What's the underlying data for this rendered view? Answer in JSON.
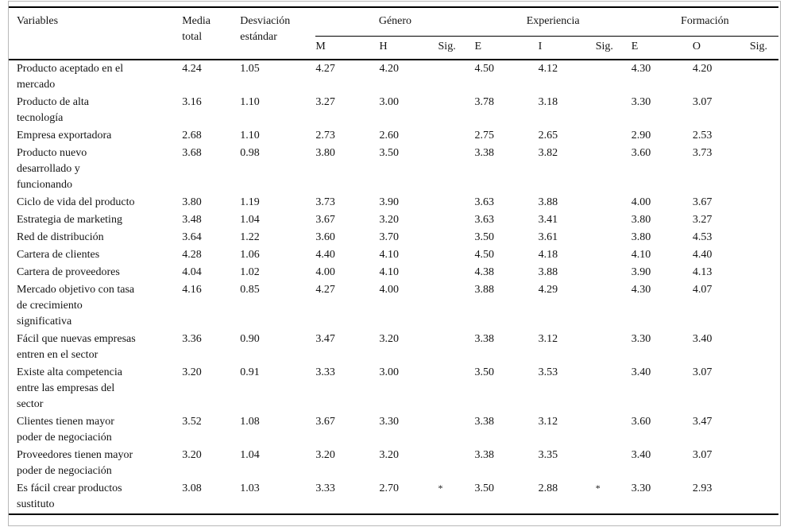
{
  "table": {
    "header": {
      "variables": "Variables",
      "media_total": "Media\ntotal",
      "desviacion": "Desviación\nestándar",
      "groups": [
        {
          "label": "Género",
          "cols": [
            "M",
            "H",
            "Sig."
          ]
        },
        {
          "label": "Experiencia",
          "cols": [
            "E",
            "I",
            "Sig."
          ]
        },
        {
          "label": "Formación",
          "cols": [
            "E",
            "O",
            "Sig."
          ]
        }
      ]
    },
    "rows": [
      {
        "variable": "Producto aceptado en el\nmercado",
        "values": [
          "4.24",
          "1.05",
          "4.27",
          "4.20",
          "",
          "4.50",
          "4.12",
          "",
          "4.30",
          "4.20",
          ""
        ]
      },
      {
        "variable": "Producto de alta\ntecnología",
        "values": [
          "3.16",
          "1.10",
          "3.27",
          "3.00",
          "",
          "3.78",
          "3.18",
          "",
          "3.30",
          "3.07",
          ""
        ]
      },
      {
        "variable": "Empresa exportadora",
        "values": [
          "2.68",
          "1.10",
          "2.73",
          "2.60",
          "",
          "2.75",
          "2.65",
          "",
          "2.90",
          "2.53",
          ""
        ]
      },
      {
        "variable": "Producto nuevo\ndesarrollado y\nfuncionando",
        "values": [
          "3.68",
          "0.98",
          "3.80",
          "3.50",
          "",
          "3.38",
          "3.82",
          "",
          "3.60",
          "3.73",
          ""
        ]
      },
      {
        "variable": "Ciclo de vida del producto",
        "values": [
          "3.80",
          "1.19",
          "3.73",
          "3.90",
          "",
          "3.63",
          "3.88",
          "",
          "4.00",
          "3.67",
          ""
        ]
      },
      {
        "variable": "Estrategia de marketing",
        "values": [
          "3.48",
          "1.04",
          "3.67",
          "3.20",
          "",
          "3.63",
          "3.41",
          "",
          "3.80",
          "3.27",
          ""
        ]
      },
      {
        "variable": "Red de distribución",
        "values": [
          "3.64",
          "1.22",
          "3.60",
          "3.70",
          "",
          "3.50",
          "3.61",
          "",
          "3.80",
          "4.53",
          ""
        ]
      },
      {
        "variable": "Cartera de clientes",
        "values": [
          "4.28",
          "1.06",
          "4.40",
          "4.10",
          "",
          "4.50",
          "4.18",
          "",
          "4.10",
          "4.40",
          ""
        ]
      },
      {
        "variable": "Cartera de proveedores",
        "values": [
          "4.04",
          "1.02",
          "4.00",
          "4.10",
          "",
          "4.38",
          "3.88",
          "",
          "3.90",
          "4.13",
          ""
        ]
      },
      {
        "variable": "Mercado objetivo con tasa\nde crecimiento\nsignificativa",
        "values": [
          "4.16",
          "0.85",
          "4.27",
          "4.00",
          "",
          "3.88",
          "4.29",
          "",
          "4.30",
          "4.07",
          ""
        ]
      },
      {
        "variable": "Fácil que nuevas empresas\nentren en el sector",
        "values": [
          "3.36",
          "0.90",
          "3.47",
          "3.20",
          "",
          "3.38",
          "3.12",
          "",
          "3.30",
          "3.40",
          ""
        ]
      },
      {
        "variable": "Existe alta competencia\nentre las empresas del\nsector",
        "values": [
          "3.20",
          "0.91",
          "3.33",
          "3.00",
          "",
          "3.50",
          "3.53",
          "",
          "3.40",
          "3.07",
          ""
        ]
      },
      {
        "variable": "Clientes tienen mayor\npoder de negociación",
        "values": [
          "3.52",
          "1.08",
          "3.67",
          "3.30",
          "",
          "3.38",
          "3.12",
          "",
          "3.60",
          "3.47",
          ""
        ]
      },
      {
        "variable": "Proveedores tienen mayor\npoder de negociación",
        "values": [
          "3.20",
          "1.04",
          "3.20",
          "3.20",
          "",
          "3.38",
          "3.35",
          "",
          "3.40",
          "3.07",
          ""
        ]
      },
      {
        "variable": "Es fácil crear productos\nsustituto",
        "values": [
          "3.08",
          "1.03",
          "3.33",
          "2.70",
          "*",
          "3.50",
          "2.88",
          "*",
          "3.30",
          "2.93",
          ""
        ]
      }
    ]
  }
}
